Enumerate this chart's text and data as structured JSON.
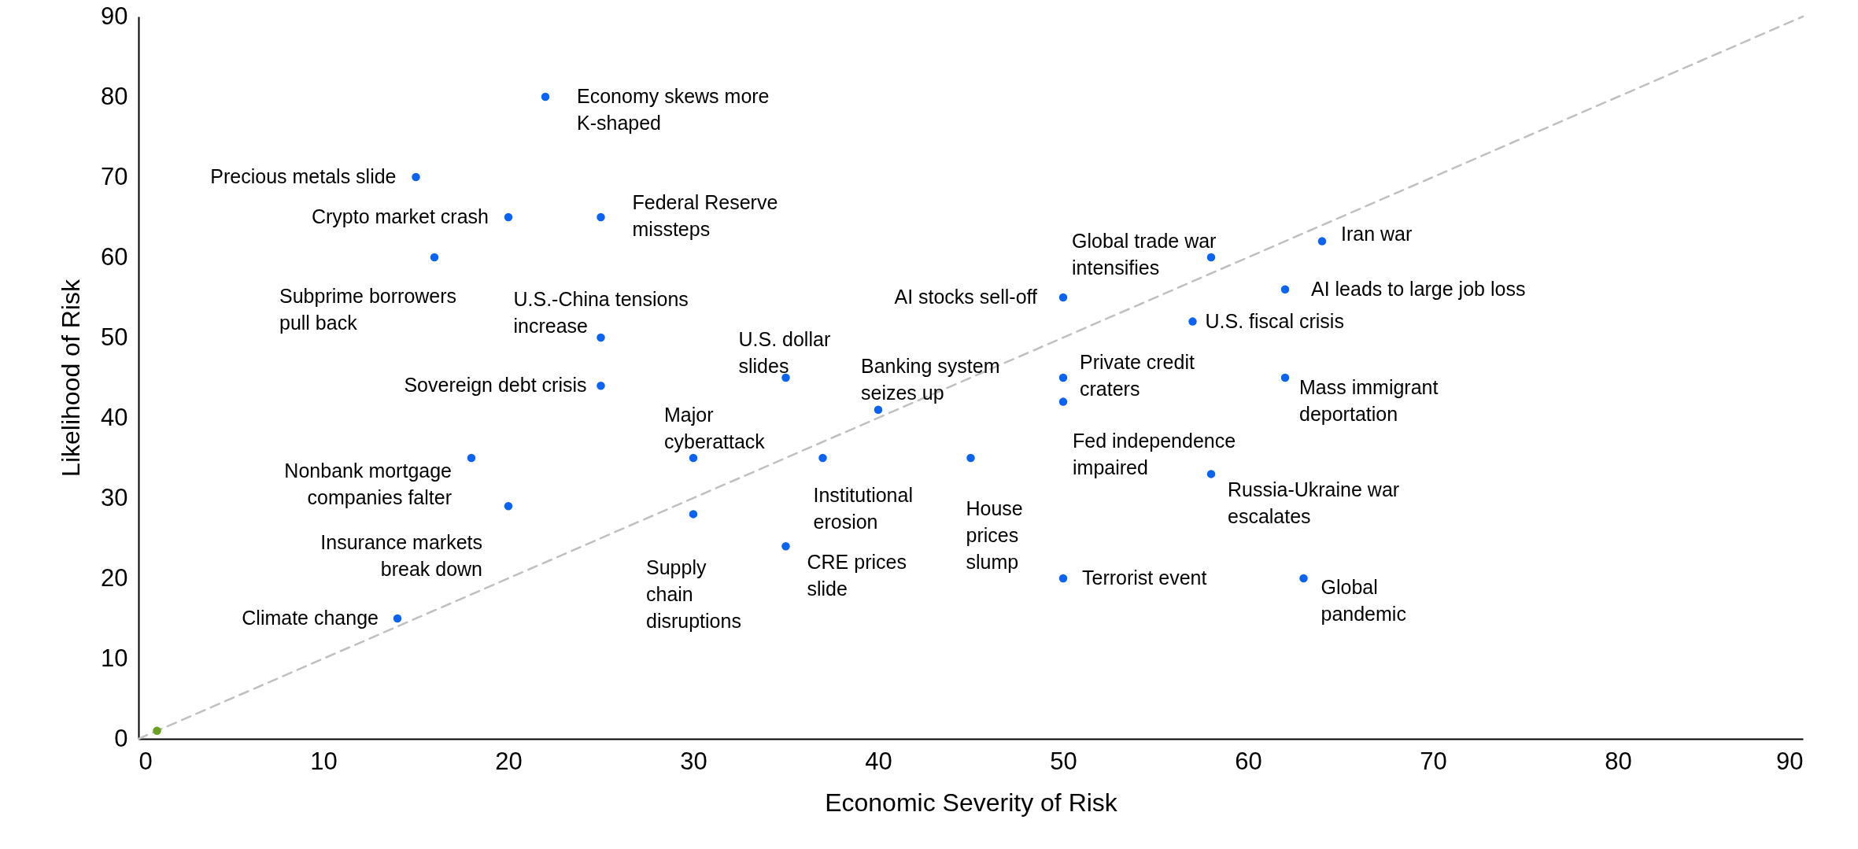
{
  "chart_data": {
    "type": "scatter",
    "xlabel": "Economic Severity of Risk",
    "ylabel": "Likelihood of Risk",
    "xlim": [
      0,
      90
    ],
    "ylim": [
      0,
      90
    ],
    "xticks": [
      0,
      10,
      20,
      30,
      40,
      50,
      60,
      70,
      80,
      90
    ],
    "yticks": [
      0,
      10,
      20,
      30,
      40,
      50,
      60,
      70,
      80,
      90
    ],
    "grid": false,
    "marker": "circle",
    "series": [
      {
        "type": "line",
        "color": "#c0c0c0",
        "line_style": "dashed",
        "marker": "none",
        "x": [
          0,
          90
        ],
        "values": [
          0,
          90
        ]
      },
      {
        "color": "#0b63f6",
        "x": [
          22,
          15,
          20,
          25,
          16,
          25,
          25,
          35,
          40,
          30,
          37,
          45,
          18,
          20,
          30,
          35,
          14,
          50,
          63,
          58,
          50,
          50,
          62,
          57,
          50,
          62,
          58,
          64
        ],
        "values": [
          80,
          70,
          65,
          65,
          60,
          50,
          44,
          45,
          41,
          35,
          35,
          35,
          35,
          29,
          28,
          24,
          15,
          20,
          20,
          33,
          42,
          45,
          45,
          52,
          55,
          56,
          60,
          62
        ]
      },
      {
        "color": "#6aa121",
        "x": [
          1
        ],
        "values": [
          1
        ]
      }
    ],
    "annotations": [
      {
        "text": "Economy skews more\nK-shaped",
        "x": 22,
        "y": 80
      },
      {
        "text": "Precious metals slide",
        "x": 15,
        "y": 70
      },
      {
        "text": "Crypto market crash",
        "x": 20,
        "y": 65
      },
      {
        "text": "Federal Reserve\nmissteps",
        "x": 25,
        "y": 65
      },
      {
        "text": "Subprime borrowers\npull back",
        "x": 16,
        "y": 60
      },
      {
        "text": "U.S.-China tensions\nincrease",
        "x": 25,
        "y": 50
      },
      {
        "text": "Sovereign debt crisis",
        "x": 25,
        "y": 44
      },
      {
        "text": "U.S. dollar\nslides",
        "x": 35,
        "y": 45
      },
      {
        "text": "Banking system\nseizes up",
        "x": 40,
        "y": 41
      },
      {
        "text": "Major\ncyberattack",
        "x": 30,
        "y": 35
      },
      {
        "text": "Institutional\nerosion",
        "x": 37,
        "y": 35
      },
      {
        "text": "House\nprices\nslump",
        "x": 45,
        "y": 35
      },
      {
        "text": "Nonbank mortgage\ncompanies falter",
        "x": 18,
        "y": 35
      },
      {
        "text": "Insurance markets\nbreak down",
        "x": 20,
        "y": 29
      },
      {
        "text": "Supply\nchain\ndisruptions",
        "x": 30,
        "y": 28
      },
      {
        "text": "CRE prices\nslide",
        "x": 35,
        "y": 24
      },
      {
        "text": "Climate change",
        "x": 14,
        "y": 15
      },
      {
        "text": "Terrorist event",
        "x": 50,
        "y": 20
      },
      {
        "text": "Global\npandemic",
        "x": 63,
        "y": 20
      },
      {
        "text": "Russia-Ukraine war\nescalates",
        "x": 58,
        "y": 33
      },
      {
        "text": "Fed independence\nimpaired",
        "x": 50,
        "y": 42
      },
      {
        "text": "Private credit\ncraters",
        "x": 50,
        "y": 45
      },
      {
        "text": "Mass immigrant\ndeportation",
        "x": 62,
        "y": 45
      },
      {
        "text": "U.S. fiscal crisis",
        "x": 57,
        "y": 52
      },
      {
        "text": "AI stocks sell-off",
        "x": 50,
        "y": 55
      },
      {
        "text": "AI leads to large job loss",
        "x": 62,
        "y": 56
      },
      {
        "text": "Global trade war\nintensifies",
        "x": 58,
        "y": 60
      },
      {
        "text": "Iran war",
        "x": 64,
        "y": 62
      }
    ]
  }
}
